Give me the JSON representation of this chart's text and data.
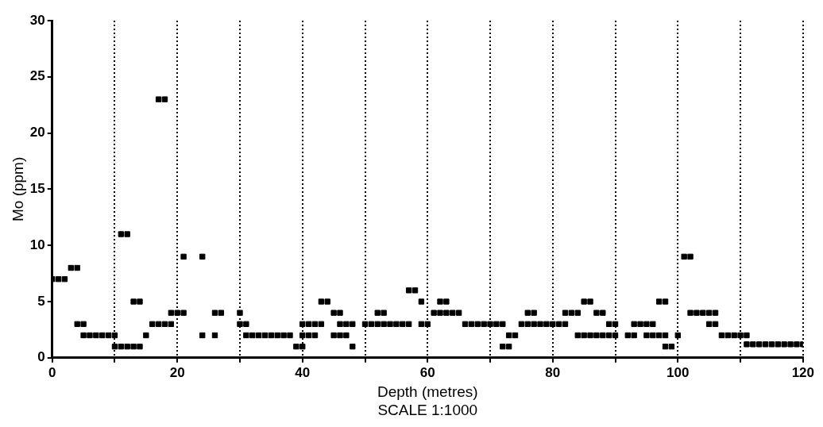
{
  "chart_data": {
    "type": "scatter",
    "xlabel": "Depth (metres)",
    "ylabel": "Mo (ppm)",
    "annotations": [
      "SCALE 1:1000"
    ],
    "xlim": [
      0,
      120
    ],
    "ylim": [
      0,
      30
    ],
    "xticks": [
      0,
      {
        "value": 10,
        "label": null
      },
      20,
      {
        "value": 30,
        "label": null
      },
      40,
      {
        "value": 50,
        "label": null
      },
      60,
      {
        "value": 70,
        "label": null
      },
      80,
      {
        "value": 90,
        "label": null
      },
      100,
      {
        "value": 110,
        "label": null
      },
      120
    ],
    "yticks": [
      0,
      5,
      10,
      15,
      20,
      25,
      30
    ],
    "grid": "x",
    "marker": "square",
    "series": [
      {
        "color": "#000000",
        "x": [
          0,
          1,
          2,
          3,
          4,
          4,
          5,
          5,
          6,
          7,
          8,
          9,
          10,
          10,
          11,
          12,
          13,
          14,
          11,
          12,
          13,
          14,
          15,
          16,
          17,
          18,
          19,
          17,
          18,
          19,
          20,
          21,
          21,
          24,
          24,
          26,
          26,
          27,
          30,
          30,
          31,
          31,
          32,
          33,
          34,
          35,
          36,
          37,
          38,
          39,
          40,
          40,
          41,
          42,
          40,
          41,
          42,
          43,
          43,
          44,
          45,
          46,
          45,
          46,
          47,
          48,
          46,
          47,
          48,
          50,
          51,
          52,
          53,
          54,
          55,
          56,
          57,
          52,
          53,
          57,
          58,
          59,
          59,
          60,
          61,
          62,
          63,
          64,
          65,
          62,
          63,
          66,
          67,
          68,
          69,
          70,
          71,
          72,
          72,
          73,
          73,
          74,
          75,
          76,
          77,
          78,
          79,
          80,
          81,
          82,
          76,
          77,
          82,
          83,
          84,
          84,
          85,
          86,
          85,
          86,
          87,
          88,
          87,
          88,
          89,
          90,
          89,
          90,
          92,
          93,
          93,
          94,
          95,
          96,
          95,
          96,
          97,
          98,
          97,
          98,
          98,
          99,
          100,
          101,
          102,
          102,
          103,
          104,
          105,
          106,
          105,
          106,
          107,
          108,
          109,
          110,
          111,
          111,
          112,
          113,
          114,
          115,
          116,
          117,
          118,
          119,
          120
        ],
        "values": [
          7,
          7,
          7,
          8,
          8,
          3,
          3,
          2,
          2,
          2,
          2,
          2,
          2,
          1,
          1,
          1,
          1,
          1,
          11,
          11,
          5,
          5,
          2,
          3,
          3,
          3,
          3,
          23,
          23,
          4,
          4,
          4,
          9,
          9,
          2,
          2,
          4,
          4,
          4,
          3,
          3,
          2,
          2,
          2,
          2,
          2,
          2,
          2,
          2,
          1,
          1,
          2,
          2,
          2,
          3,
          3,
          3,
          3,
          5,
          5,
          4,
          4,
          2,
          2,
          2,
          1,
          3,
          3,
          3,
          3,
          3,
          3,
          3,
          3,
          3,
          3,
          3,
          4,
          4,
          6,
          6,
          5,
          3,
          3,
          4,
          4,
          4,
          4,
          4,
          5,
          5,
          3,
          3,
          3,
          3,
          3,
          3,
          3,
          1,
          1,
          2,
          2,
          3,
          3,
          3,
          3,
          3,
          3,
          3,
          3,
          4,
          4,
          4,
          4,
          4,
          2,
          2,
          2,
          5,
          5,
          4,
          4,
          2,
          2,
          2,
          2,
          3,
          3,
          2,
          2,
          3,
          3,
          3,
          3,
          2,
          2,
          2,
          2,
          5,
          5,
          1,
          1,
          2,
          9,
          9,
          4,
          4,
          4,
          4,
          4,
          3,
          3,
          2,
          2,
          2,
          2,
          2,
          1.2,
          1.2,
          1.2,
          1.2,
          1.2,
          1.2,
          1.2,
          1.2,
          1.2,
          1.2
        ]
      }
    ]
  }
}
